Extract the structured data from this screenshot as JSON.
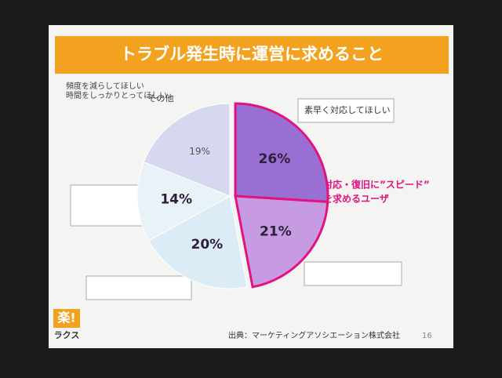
{
  "chart_data": {
    "type": "pie",
    "title": "トラブル発生時に運営に求めること",
    "categories": [
      "素早く対応してほしい",
      null,
      null,
      null,
      "その他"
    ],
    "values": [
      26,
      21,
      20,
      14,
      19
    ],
    "value_labels": [
      "26%",
      "21%",
      "20%",
      "14%",
      "19%"
    ],
    "colors": [
      "#9a6fd3",
      "#c69be2",
      "#dcecf6",
      "#e8f2f7",
      "#d5d8ee"
    ],
    "highlight_color": "#e2137f",
    "annotations": [
      "頻度を減らしてほしい",
      "時間をしっかりとってほしい",
      "対応・復旧に”スピード”",
      "を求めるユーザ"
    ],
    "source": "出典：マーケティングアソシエーション株式会社",
    "page_number": "16",
    "logo": [
      "楽!",
      "ラクス"
    ]
  }
}
